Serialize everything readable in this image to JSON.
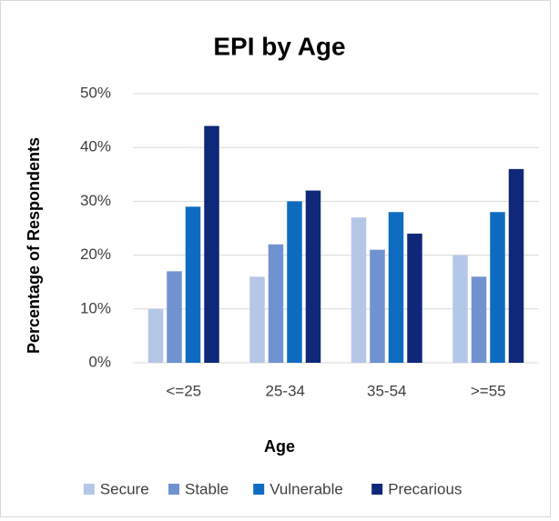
{
  "chart_data": {
    "type": "bar",
    "title": "EPI by Age",
    "x_label": "Age",
    "y_label": "Percentage of Respondents",
    "categories": [
      "<=25",
      "25-34",
      "35-54",
      ">=55"
    ],
    "series": [
      {
        "name": "Secure",
        "color": "#b4c7e7",
        "values": [
          10,
          16,
          27,
          20
        ]
      },
      {
        "name": "Stable",
        "color": "#7092d0",
        "values": [
          17,
          22,
          21,
          16
        ]
      },
      {
        "name": "Vulnerable",
        "color": "#0e6cc0",
        "values": [
          29,
          30,
          28,
          28
        ]
      },
      {
        "name": "Precarious",
        "color": "#10287a",
        "values": [
          44,
          32,
          24,
          36
        ]
      }
    ],
    "ylim": [
      0,
      50
    ],
    "yticks": [
      {
        "value": 0,
        "label": "0%"
      },
      {
        "value": 10,
        "label": "10%"
      },
      {
        "value": 20,
        "label": "20%"
      },
      {
        "value": 30,
        "label": "30%"
      },
      {
        "value": 40,
        "label": "40%"
      },
      {
        "value": 50,
        "label": "50%"
      }
    ],
    "grid": true,
    "legend": "bottom"
  }
}
